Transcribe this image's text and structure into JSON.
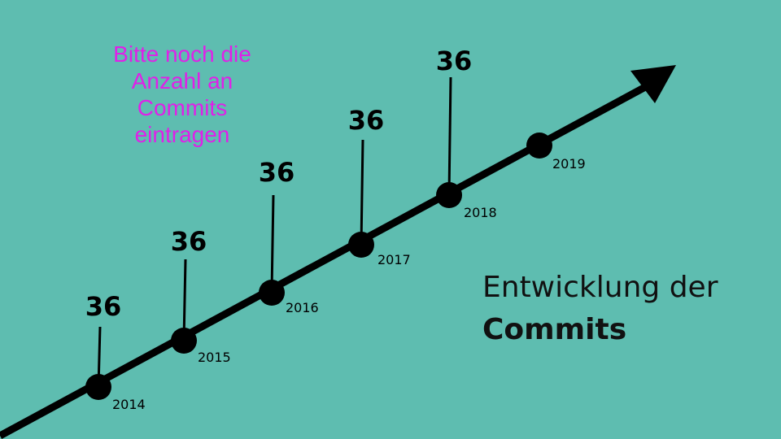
{
  "slide": {
    "background": "#5ebdb0",
    "note_color": "#e020e8",
    "note_lines": [
      "Bitte noch die",
      "Anzahl an",
      "Commits",
      "eintragen"
    ],
    "title_line1": "Entwicklung der",
    "title_line2": "Commits"
  },
  "timeline": [
    {
      "year": "2014",
      "commits": "36"
    },
    {
      "year": "2015",
      "commits": "36"
    },
    {
      "year": "2016",
      "commits": "36"
    },
    {
      "year": "2017",
      "commits": "36"
    },
    {
      "year": "2018",
      "commits": "36"
    },
    {
      "year": "2019",
      "commits": null
    }
  ]
}
